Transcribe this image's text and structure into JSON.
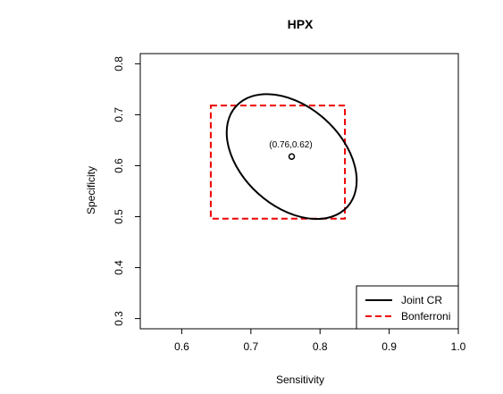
{
  "chart_data": {
    "type": "scatter",
    "title": "HPX",
    "xlabel": "Sensitivity",
    "ylabel": "Specificity",
    "xlim": [
      0.54,
      1.0
    ],
    "ylim": [
      0.28,
      0.82
    ],
    "xticks": [
      0.6,
      0.7,
      0.8,
      0.9,
      1.0
    ],
    "xtick_labels": [
      "0.6",
      "0.7",
      "0.8",
      "0.9",
      "1.0"
    ],
    "yticks": [
      0.3,
      0.4,
      0.5,
      0.6,
      0.7,
      0.8
    ],
    "ytick_labels": [
      "0.3",
      "0.4",
      "0.5",
      "0.6",
      "0.7",
      "0.8"
    ],
    "grid": false,
    "legend_position": "bottom-right",
    "point": {
      "x": 0.759,
      "y": 0.618,
      "label": "(0.76,0.62)"
    },
    "series": [
      {
        "name": "Joint CR",
        "kind": "ellipse",
        "color": "#000000",
        "style": "solid",
        "center": {
          "x": 0.759,
          "y": 0.618
        },
        "extent": {
          "x_min": 0.665,
          "x_max": 0.853,
          "y_min": 0.496,
          "y_max": 0.741
        }
      },
      {
        "name": "Bonferroni",
        "kind": "rectangle",
        "color": "#ee0000",
        "style": "dashed",
        "x_min": 0.642,
        "x_max": 0.836,
        "y_min": 0.496,
        "y_max": 0.718
      }
    ]
  }
}
